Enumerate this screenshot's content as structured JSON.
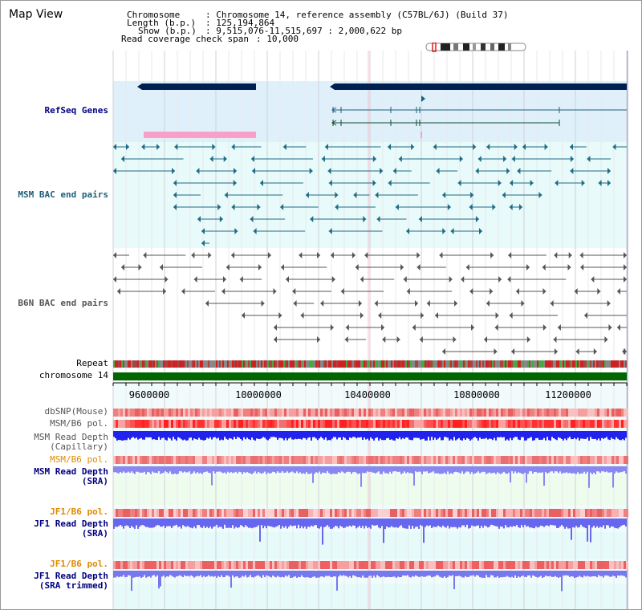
{
  "title": "Map View",
  "info": {
    "chromosome_key": "Chromosome    ",
    "chromosome_val": ": Chromosome 14, reference assembly (C57BL/6J) (Build 37)",
    "length_key": "Length (b.p.)",
    "length_val": ": 125,194,864",
    "show_key": "Show (b.p.)",
    "show_val": ": 9,515,076-11,515,697 : 2,000,622 bp",
    "span_key": "Read coverage check span",
    "span_val": ": 10,000"
  },
  "tracks": {
    "refseq": "RefSeq Genes",
    "msm_bac": "MSM BAC end pairs",
    "b6n_bac": "B6N BAC end pairs",
    "repeat": "Repeat",
    "chromosome": "chromosome 14",
    "dbsnp": "dbSNP(Mouse)",
    "msm_pol1": "MSM/B6 pol.",
    "msm_depth_cap_1": "MSM Read Depth",
    "msm_depth_cap_2": "(Capillary)",
    "msm_pol2": "MSM/B6 pol.",
    "msm_depth_sra_1": "MSM Read Depth",
    "msm_depth_sra_2": "(SRA)",
    "jf1_pol1": "JF1/B6 pol.",
    "jf1_depth_sra_1": "JF1 Read Depth",
    "jf1_depth_sra_2": "(SRA)",
    "jf1_pol2": "JF1/B6 pol.",
    "jf1_depth_trim_1": "JF1 Read Depth",
    "jf1_depth_trim_2": "(SRA trimmed)"
  },
  "axis": {
    "ticks": [
      "9600000",
      "10000000",
      "10400000",
      "10800000",
      "11200000"
    ]
  },
  "colors": {
    "navy": "#002050",
    "refseq_bg": "#dff0fa",
    "bac_bg": "#e8fafa",
    "msm_bac": "#1f6b84",
    "b6n_bac": "#555555",
    "chromosome": "#006600",
    "pol": "#ff4040",
    "depth": "#2222ee"
  }
}
